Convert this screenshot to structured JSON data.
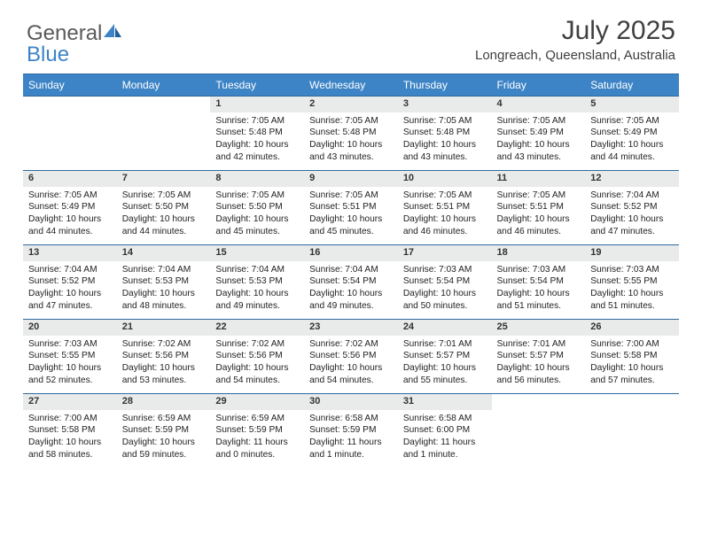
{
  "brand": {
    "part1": "General",
    "part2": "Blue"
  },
  "title": "July 2025",
  "location": "Longreach, Queensland, Australia",
  "colors": {
    "header_bg": "#3d84c6",
    "header_border": "#2f6aa0",
    "daynum_bg": "#e9eaea",
    "text": "#222222",
    "title_text": "#404040",
    "logo_gray": "#5a5a5a",
    "logo_blue": "#3d84c6",
    "page_bg": "#ffffff"
  },
  "typography": {
    "month_title_pt": 30,
    "location_pt": 15,
    "dayheader_pt": 12,
    "daynum_pt": 11,
    "body_pt": 10.2
  },
  "day_headers": [
    "Sunday",
    "Monday",
    "Tuesday",
    "Wednesday",
    "Thursday",
    "Friday",
    "Saturday"
  ],
  "weeks": [
    {
      "nums": [
        "",
        "",
        "1",
        "2",
        "3",
        "4",
        "5"
      ],
      "cells": [
        "",
        "",
        "Sunrise: 7:05 AM\nSunset: 5:48 PM\nDaylight: 10 hours and 42 minutes.",
        "Sunrise: 7:05 AM\nSunset: 5:48 PM\nDaylight: 10 hours and 43 minutes.",
        "Sunrise: 7:05 AM\nSunset: 5:48 PM\nDaylight: 10 hours and 43 minutes.",
        "Sunrise: 7:05 AM\nSunset: 5:49 PM\nDaylight: 10 hours and 43 minutes.",
        "Sunrise: 7:05 AM\nSunset: 5:49 PM\nDaylight: 10 hours and 44 minutes."
      ]
    },
    {
      "nums": [
        "6",
        "7",
        "8",
        "9",
        "10",
        "11",
        "12"
      ],
      "cells": [
        "Sunrise: 7:05 AM\nSunset: 5:49 PM\nDaylight: 10 hours and 44 minutes.",
        "Sunrise: 7:05 AM\nSunset: 5:50 PM\nDaylight: 10 hours and 44 minutes.",
        "Sunrise: 7:05 AM\nSunset: 5:50 PM\nDaylight: 10 hours and 45 minutes.",
        "Sunrise: 7:05 AM\nSunset: 5:51 PM\nDaylight: 10 hours and 45 minutes.",
        "Sunrise: 7:05 AM\nSunset: 5:51 PM\nDaylight: 10 hours and 46 minutes.",
        "Sunrise: 7:05 AM\nSunset: 5:51 PM\nDaylight: 10 hours and 46 minutes.",
        "Sunrise: 7:04 AM\nSunset: 5:52 PM\nDaylight: 10 hours and 47 minutes."
      ]
    },
    {
      "nums": [
        "13",
        "14",
        "15",
        "16",
        "17",
        "18",
        "19"
      ],
      "cells": [
        "Sunrise: 7:04 AM\nSunset: 5:52 PM\nDaylight: 10 hours and 47 minutes.",
        "Sunrise: 7:04 AM\nSunset: 5:53 PM\nDaylight: 10 hours and 48 minutes.",
        "Sunrise: 7:04 AM\nSunset: 5:53 PM\nDaylight: 10 hours and 49 minutes.",
        "Sunrise: 7:04 AM\nSunset: 5:54 PM\nDaylight: 10 hours and 49 minutes.",
        "Sunrise: 7:03 AM\nSunset: 5:54 PM\nDaylight: 10 hours and 50 minutes.",
        "Sunrise: 7:03 AM\nSunset: 5:54 PM\nDaylight: 10 hours and 51 minutes.",
        "Sunrise: 7:03 AM\nSunset: 5:55 PM\nDaylight: 10 hours and 51 minutes."
      ]
    },
    {
      "nums": [
        "20",
        "21",
        "22",
        "23",
        "24",
        "25",
        "26"
      ],
      "cells": [
        "Sunrise: 7:03 AM\nSunset: 5:55 PM\nDaylight: 10 hours and 52 minutes.",
        "Sunrise: 7:02 AM\nSunset: 5:56 PM\nDaylight: 10 hours and 53 minutes.",
        "Sunrise: 7:02 AM\nSunset: 5:56 PM\nDaylight: 10 hours and 54 minutes.",
        "Sunrise: 7:02 AM\nSunset: 5:56 PM\nDaylight: 10 hours and 54 minutes.",
        "Sunrise: 7:01 AM\nSunset: 5:57 PM\nDaylight: 10 hours and 55 minutes.",
        "Sunrise: 7:01 AM\nSunset: 5:57 PM\nDaylight: 10 hours and 56 minutes.",
        "Sunrise: 7:00 AM\nSunset: 5:58 PM\nDaylight: 10 hours and 57 minutes."
      ]
    },
    {
      "nums": [
        "27",
        "28",
        "29",
        "30",
        "31",
        "",
        ""
      ],
      "cells": [
        "Sunrise: 7:00 AM\nSunset: 5:58 PM\nDaylight: 10 hours and 58 minutes.",
        "Sunrise: 6:59 AM\nSunset: 5:59 PM\nDaylight: 10 hours and 59 minutes.",
        "Sunrise: 6:59 AM\nSunset: 5:59 PM\nDaylight: 11 hours and 0 minutes.",
        "Sunrise: 6:58 AM\nSunset: 5:59 PM\nDaylight: 11 hours and 1 minute.",
        "Sunrise: 6:58 AM\nSunset: 6:00 PM\nDaylight: 11 hours and 1 minute.",
        "",
        ""
      ]
    }
  ]
}
